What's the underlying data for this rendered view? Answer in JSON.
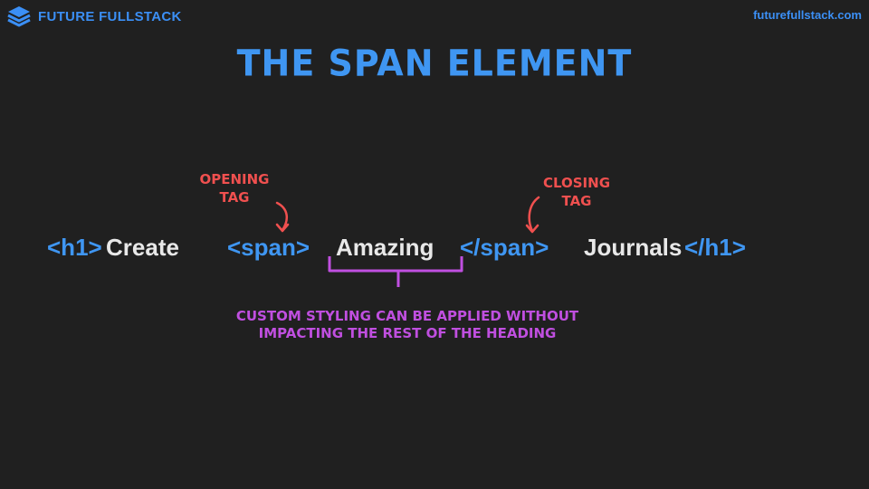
{
  "header": {
    "brand_name": "FUTURE FULLSTACK",
    "brand_icon": "stacked-layers-icon",
    "site_url": "futurefullstack.com"
  },
  "slide": {
    "title": "THE SPAN ELEMENT",
    "code_tokens": {
      "h1_open": "<h1>",
      "word_create": "Create",
      "span_open": "<span>",
      "word_amazing": "Amazing",
      "span_close": "</span>",
      "word_journals": "Journals",
      "h1_close": "</h1>"
    },
    "annotations": {
      "opening_line1": "OPENING",
      "opening_line2": "TAG",
      "closing_line1": "CLOSING",
      "closing_line2": "TAG",
      "note_line1": "CUSTOM STYLING CAN BE APPLIED WITHOUT",
      "note_line2": "IMPACTING THE REST OF THE HEADING"
    }
  },
  "colors": {
    "background": "#202020",
    "tag_blue": "#3f96f2",
    "text_white": "#e8e8e8",
    "annotation_red": "#f0504f",
    "annotation_purple": "#c04fe0"
  }
}
